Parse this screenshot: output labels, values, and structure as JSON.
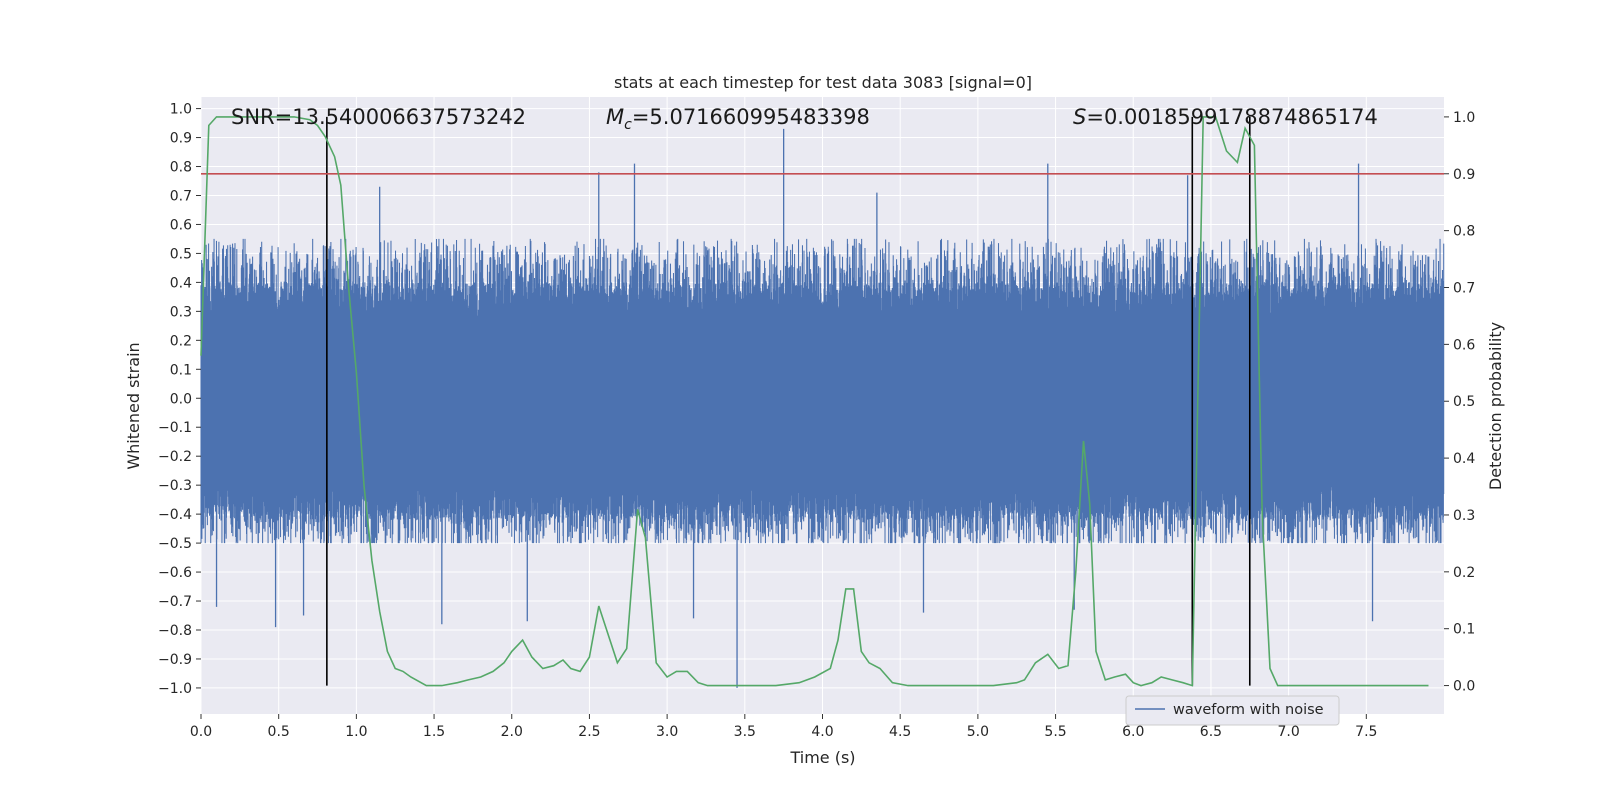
{
  "chart_data": {
    "type": "line",
    "title": "stats at each timestep for test data 3083 [signal=0]",
    "xlabel": "Time (s)",
    "ylabel_left": "Whitened strain",
    "ylabel_right": "Detection probability",
    "xlim": [
      0.0,
      8.0
    ],
    "ylim_left": [
      -1.09,
      1.04
    ],
    "ylim_right": [
      -0.05,
      1.035
    ],
    "x_ticks": [
      "0.0",
      "0.5",
      "1.0",
      "1.5",
      "2.0",
      "2.5",
      "3.0",
      "3.5",
      "4.0",
      "4.5",
      "5.0",
      "5.5",
      "6.0",
      "6.5",
      "7.0",
      "7.5"
    ],
    "y_ticks_left": [
      "1.0",
      "0.9",
      "0.8",
      "0.7",
      "0.6",
      "0.5",
      "0.4",
      "0.3",
      "0.2",
      "0.1",
      "0.0",
      "-0.1",
      "-0.2",
      "-0.3",
      "-0.4",
      "-0.5",
      "-0.6",
      "-0.7",
      "-0.8",
      "-0.9",
      "-1.0"
    ],
    "y_ticks_right": [
      "1.0",
      "0.9",
      "0.8",
      "0.7",
      "0.6",
      "0.5",
      "0.4",
      "0.3",
      "0.2",
      "0.1",
      "0.0"
    ],
    "grid": true,
    "legend": {
      "entries": [
        "waveform with noise"
      ],
      "placement": "bottom-right"
    },
    "annotations": {
      "snr_text": "SNR=13.540006637573242",
      "mc_symbol": "M",
      "mc_sub": "c",
      "mc_value": "=5.071660995483398",
      "s_symbol": "S",
      "s_value": "=0.0018599178874865174"
    },
    "threshold_line": {
      "axis": "right",
      "value": 0.9,
      "color": "#c44e52"
    },
    "vertical_lines": [
      0.81,
      6.38,
      6.75
    ],
    "colors": {
      "waveform": "#4c72b0",
      "probability": "#55a868",
      "threshold": "#c44e52",
      "vlines": "#000000",
      "background": "#eaeaf2"
    },
    "waveform": {
      "name": "waveform with noise",
      "samples": 4096,
      "upper_envelope": 0.55,
      "lower_envelope": -0.5,
      "spikes": [
        {
          "t": 0.1,
          "v": -0.72
        },
        {
          "t": 0.11,
          "v": 0.49
        },
        {
          "t": 0.48,
          "v": -0.79
        },
        {
          "t": 0.66,
          "v": -0.75
        },
        {
          "t": 1.15,
          "v": 0.73
        },
        {
          "t": 1.55,
          "v": -0.78
        },
        {
          "t": 2.1,
          "v": -0.77
        },
        {
          "t": 2.56,
          "v": 0.78
        },
        {
          "t": 2.79,
          "v": 0.81
        },
        {
          "t": 3.17,
          "v": -0.76
        },
        {
          "t": 3.45,
          "v": -1.0
        },
        {
          "t": 3.75,
          "v": 0.93
        },
        {
          "t": 4.35,
          "v": 0.71
        },
        {
          "t": 4.65,
          "v": -0.74
        },
        {
          "t": 5.45,
          "v": 0.81
        },
        {
          "t": 5.62,
          "v": -0.73
        },
        {
          "t": 6.35,
          "v": 0.77
        },
        {
          "t": 7.45,
          "v": 0.81
        },
        {
          "t": 7.54,
          "v": -0.77
        }
      ]
    },
    "probability": {
      "name": "detection probability",
      "x": [
        0.0,
        0.05,
        0.1,
        0.2,
        0.3,
        0.4,
        0.5,
        0.6,
        0.7,
        0.75,
        0.8,
        0.86,
        0.9,
        0.95,
        1.0,
        1.05,
        1.1,
        1.15,
        1.2,
        1.25,
        1.3,
        1.35,
        1.45,
        1.55,
        1.65,
        1.72,
        1.8,
        1.88,
        1.95,
        2.0,
        2.07,
        2.13,
        2.2,
        2.27,
        2.33,
        2.38,
        2.44,
        2.5,
        2.56,
        2.62,
        2.68,
        2.74,
        2.81,
        2.86,
        2.93,
        3.0,
        3.06,
        3.13,
        3.2,
        3.26,
        3.35,
        3.45,
        3.55,
        3.7,
        3.85,
        3.95,
        4.05,
        4.1,
        4.15,
        4.2,
        4.25,
        4.3,
        4.37,
        4.45,
        4.55,
        4.7,
        4.9,
        5.1,
        5.25,
        5.3,
        5.37,
        5.45,
        5.52,
        5.58,
        5.63,
        5.68,
        5.72,
        5.76,
        5.82,
        5.88,
        5.95,
        6.0,
        6.05,
        6.12,
        6.18,
        6.25,
        6.32,
        6.38,
        6.45,
        6.53,
        6.6,
        6.67,
        6.72,
        6.78,
        6.83,
        6.88,
        6.93,
        7.0,
        7.2,
        7.5,
        7.9
      ],
      "y": [
        0.58,
        0.985,
        1.0,
        1.0,
        1.0,
        1.0,
        1.0,
        1.0,
        0.995,
        0.985,
        0.965,
        0.93,
        0.88,
        0.7,
        0.55,
        0.35,
        0.22,
        0.13,
        0.06,
        0.03,
        0.025,
        0.015,
        0.0,
        0.0,
        0.005,
        0.01,
        0.015,
        0.025,
        0.04,
        0.06,
        0.08,
        0.05,
        0.03,
        0.035,
        0.045,
        0.03,
        0.025,
        0.05,
        0.14,
        0.09,
        0.04,
        0.065,
        0.31,
        0.26,
        0.04,
        0.015,
        0.025,
        0.025,
        0.005,
        0.0,
        0.0,
        0.0,
        0.0,
        0.0,
        0.005,
        0.015,
        0.03,
        0.08,
        0.17,
        0.17,
        0.06,
        0.04,
        0.03,
        0.005,
        0.0,
        0.0,
        0.0,
        0.0,
        0.005,
        0.01,
        0.04,
        0.055,
        0.03,
        0.035,
        0.2,
        0.43,
        0.32,
        0.06,
        0.01,
        0.015,
        0.02,
        0.005,
        0.0,
        0.005,
        0.015,
        0.01,
        0.005,
        0.0,
        1.0,
        1.0,
        0.94,
        0.92,
        0.98,
        0.95,
        0.3,
        0.03,
        0.0,
        0.0,
        0.0,
        0.0,
        0.0
      ]
    }
  }
}
